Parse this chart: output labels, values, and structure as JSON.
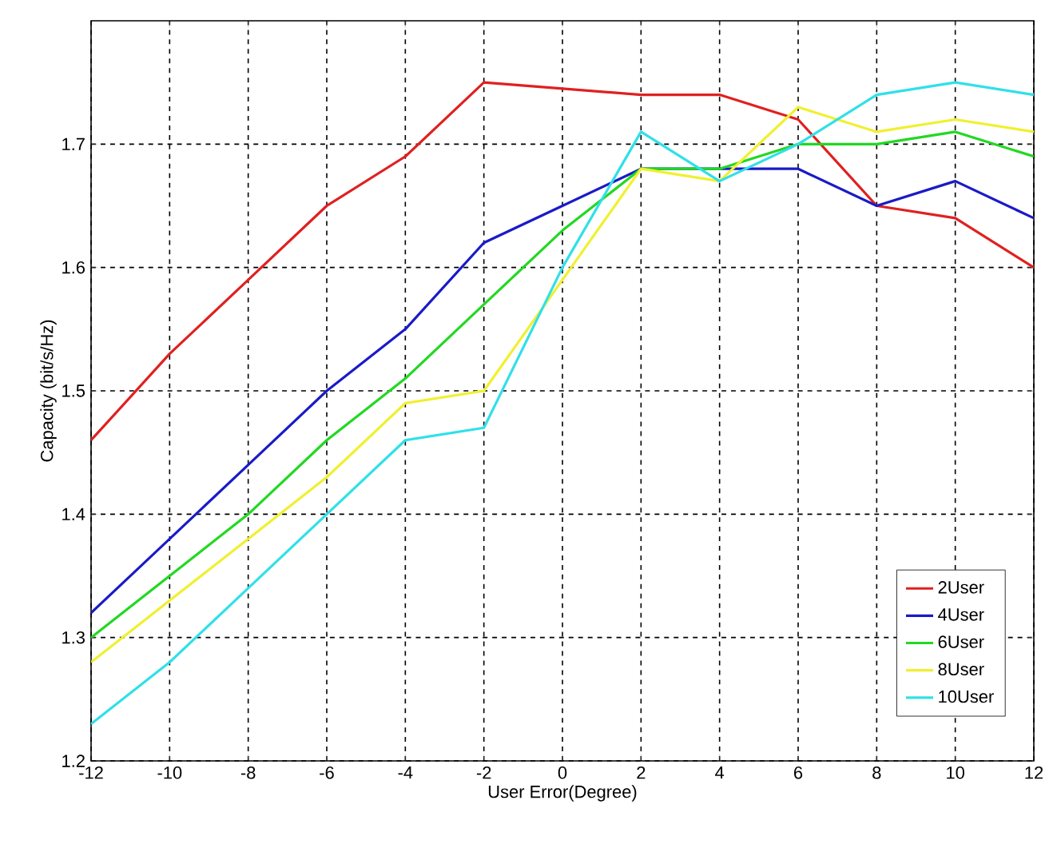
{
  "chart_data": {
    "type": "line",
    "xlabel": "User Error(Degree)",
    "ylabel": "Capacity (bit/s/Hz)",
    "x": [
      -12,
      -10,
      -8,
      -6,
      -4,
      -2,
      0,
      2,
      4,
      6,
      8,
      10,
      12
    ],
    "series": [
      {
        "name": "2User",
        "color": "#e02020",
        "values": [
          1.46,
          1.53,
          1.59,
          1.65,
          1.69,
          1.75,
          1.745,
          1.74,
          1.74,
          1.72,
          1.65,
          1.64,
          1.6
        ]
      },
      {
        "name": "4User",
        "color": "#1a1ac8",
        "values": [
          1.32,
          1.38,
          1.44,
          1.5,
          1.55,
          1.62,
          1.65,
          1.68,
          1.68,
          1.68,
          1.65,
          1.67,
          1.64
        ]
      },
      {
        "name": "6User",
        "color": "#22d822",
        "values": [
          1.3,
          1.35,
          1.4,
          1.46,
          1.51,
          1.57,
          1.63,
          1.68,
          1.68,
          1.7,
          1.7,
          1.71,
          1.69
        ]
      },
      {
        "name": "8User",
        "color": "#f0f030",
        "values": [
          1.28,
          1.33,
          1.38,
          1.43,
          1.49,
          1.5,
          1.59,
          1.68,
          1.67,
          1.73,
          1.71,
          1.72,
          1.71
        ]
      },
      {
        "name": "10User",
        "color": "#30e0e8",
        "values": [
          1.23,
          1.28,
          1.34,
          1.4,
          1.46,
          1.47,
          1.6,
          1.71,
          1.67,
          1.7,
          1.74,
          1.75,
          1.74
        ]
      }
    ],
    "xlim": [
      -12,
      12
    ],
    "xticks": [
      -12,
      -10,
      -8,
      -6,
      -4,
      -2,
      0,
      2,
      4,
      6,
      8,
      10,
      12
    ],
    "ylim": [
      1.2,
      1.8
    ],
    "yticks": [
      1.2,
      1.3,
      1.4,
      1.5,
      1.6,
      1.7
    ],
    "grid": true,
    "legend": "bottom right",
    "marker": "none",
    "line_style": "solid"
  }
}
